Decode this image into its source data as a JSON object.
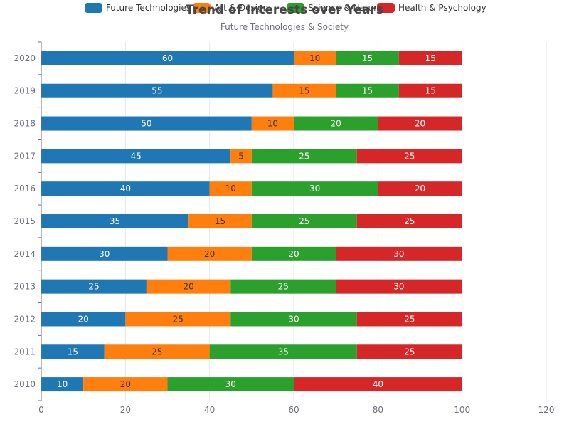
{
  "chart_data": {
    "type": "bar",
    "orientation": "horizontal",
    "stacked": true,
    "title": "Trend of Interests over Years",
    "subtitle": "Future Technologies & Society",
    "categories": [
      "2010",
      "2011",
      "2012",
      "2013",
      "2014",
      "2015",
      "2016",
      "2017",
      "2018",
      "2019",
      "2020"
    ],
    "series": [
      {
        "name": "Future Technologies",
        "color": "#1f77b4",
        "label_color": "#ffffff",
        "values": [
          10,
          15,
          20,
          25,
          30,
          35,
          40,
          45,
          50,
          55,
          60
        ]
      },
      {
        "name": "Art & Design",
        "color": "#ff7f0e",
        "label_color": "#333333",
        "values": [
          20,
          25,
          25,
          20,
          20,
          15,
          10,
          5,
          10,
          15,
          10
        ]
      },
      {
        "name": "Science & Nature",
        "color": "#2ca02c",
        "label_color": "#ffffff",
        "values": [
          30,
          35,
          30,
          25,
          20,
          25,
          30,
          25,
          20,
          15,
          15
        ]
      },
      {
        "name": "Health & Psychology",
        "color": "#d62728",
        "label_color": "#ffffff",
        "values": [
          40,
          25,
          25,
          30,
          30,
          25,
          20,
          25,
          20,
          15,
          15
        ]
      }
    ],
    "xlim": [
      0,
      120
    ],
    "xticks": [
      "0",
      "20",
      "40",
      "60",
      "80",
      "100",
      "120"
    ],
    "grid": true,
    "legend_position": "top"
  }
}
